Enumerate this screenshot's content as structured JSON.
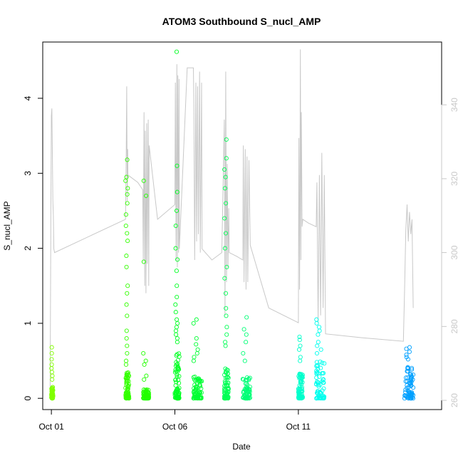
{
  "chart_data": {
    "type": "scatter",
    "title": "ATOM3 Southbound S_nucl_AMP",
    "xlabel": "Date",
    "ylabel": "S_nucl_AMP",
    "x_ticks": [
      "Oct 01",
      "Oct 06",
      "Oct 11"
    ],
    "x_tick_days": [
      1,
      6,
      11
    ],
    "xlim_days": [
      0.65,
      16.8
    ],
    "ylim": [
      -0.15,
      4.75
    ],
    "y_ticks": [
      0,
      1,
      2,
      3,
      4
    ],
    "y2_ticks": [
      260,
      280,
      300,
      320,
      340
    ],
    "y2lim": [
      257.5,
      357
    ],
    "grid": false,
    "legend": "none",
    "point_colors": [
      "#80ff00",
      "#00ff40",
      "#00ffff",
      "#0099ff"
    ],
    "secondary_line_color": "#c8c8c8",
    "clusters": [
      {
        "x": [
          1.0,
          1.07
        ],
        "y_base_max": 0.15,
        "y_max": 0.68,
        "color": "#80ff00",
        "highs": [
          0.68,
          0.6,
          0.52,
          0.45,
          0.4,
          0.35,
          0.3,
          0.25
        ]
      },
      {
        "x": [
          4.0,
          4.15
        ],
        "y_base_max": 0.35,
        "y_max": 3.18,
        "color": "#33ff00",
        "highs": [
          3.18,
          2.95,
          2.9,
          2.8,
          2.72,
          2.6,
          2.45,
          2.3,
          2.2,
          2.1,
          1.9,
          1.75,
          1.5,
          1.4,
          1.25,
          1.1,
          0.9,
          0.8,
          0.7,
          0.6,
          0.5,
          0.45
        ]
      },
      {
        "x": [
          4.72,
          4.95
        ],
        "y_base_max": 0.12,
        "y_max": 2.9,
        "color": "#22ff00",
        "highs": [
          2.9,
          2.7,
          1.82,
          0.6,
          0.5,
          0.45,
          0.3,
          0.25
        ]
      },
      {
        "x": [
          6.0,
          6.18
        ],
        "y_base_max": 0.6,
        "y_max": 4.62,
        "color": "#00ff22",
        "highs": [
          4.62,
          3.1,
          2.75,
          2.5,
          2.3,
          2.0,
          1.85,
          1.7,
          1.5,
          1.35,
          1.25,
          1.15,
          1.05,
          1.0,
          0.95,
          0.9,
          0.85,
          0.8,
          0.75
        ]
      },
      {
        "x": [
          6.75,
          7.1
        ],
        "y_base_max": 0.3,
        "y_max": 1.05,
        "color": "#00ff33",
        "highs": [
          1.05,
          1.0,
          0.8,
          0.72,
          0.65,
          0.6,
          0.55,
          0.5
        ]
      },
      {
        "x": [
          8.0,
          8.18
        ],
        "y_base_max": 0.4,
        "y_max": 3.45,
        "color": "#00ff55",
        "highs": [
          3.45,
          3.2,
          3.05,
          2.95,
          2.8,
          2.6,
          2.4,
          2.2,
          2.0,
          1.75,
          1.6,
          1.4,
          1.2,
          1.1,
          0.95,
          0.85,
          0.75,
          0.7
        ]
      },
      {
        "x": [
          8.75,
          9.05
        ],
        "y_base_max": 0.3,
        "y_max": 1.08,
        "color": "#00ff77",
        "highs": [
          1.08,
          0.92,
          0.85,
          0.75,
          0.6,
          0.5
        ]
      },
      {
        "x": [
          11.0,
          11.18
        ],
        "y_base_max": 0.35,
        "y_max": 0.82,
        "color": "#00ffcc",
        "highs": [
          0.82,
          0.78,
          0.7,
          0.65,
          0.55,
          0.5
        ]
      },
      {
        "x": [
          11.72,
          12.05
        ],
        "y_base_max": 0.5,
        "y_max": 1.05,
        "color": "#00ffee",
        "highs": [
          1.05,
          1.0,
          0.95,
          0.9,
          0.85,
          0.75,
          0.7,
          0.65,
          0.6
        ]
      },
      {
        "x": [
          15.3,
          15.65
        ],
        "y_base_max": 0.5,
        "y_max": 0.68,
        "color": "#00a0ff",
        "highs": [
          0.68,
          0.66,
          0.62,
          0.58,
          0.55,
          0.52
        ]
      }
    ],
    "secondary_series": {
      "axis": "right",
      "points": [
        [
          0.95,
          263
        ],
        [
          0.98,
          310
        ],
        [
          1.0,
          337
        ],
        [
          1.02,
          339
        ],
        [
          1.04,
          327
        ],
        [
          1.06,
          314
        ],
        [
          1.08,
          310
        ],
        [
          1.1,
          301
        ],
        [
          1.13,
          300
        ],
        [
          4.0,
          309
        ],
        [
          4.03,
          327
        ],
        [
          4.05,
          345
        ],
        [
          4.07,
          314
        ],
        [
          4.09,
          328
        ],
        [
          4.1,
          321
        ],
        [
          4.5,
          319
        ],
        [
          4.7,
          317
        ],
        [
          4.72,
          298
        ],
        [
          4.75,
          338
        ],
        [
          4.78,
          291
        ],
        [
          4.8,
          333
        ],
        [
          4.83,
          289
        ],
        [
          4.86,
          335
        ],
        [
          4.88,
          297
        ],
        [
          4.92,
          336
        ],
        [
          4.94,
          291
        ],
        [
          4.96,
          329
        ],
        [
          5.3,
          309
        ],
        [
          6.0,
          313
        ],
        [
          6.02,
          346
        ],
        [
          6.05,
          298
        ],
        [
          6.08,
          351
        ],
        [
          6.1,
          296
        ],
        [
          6.12,
          348
        ],
        [
          6.15,
          300
        ],
        [
          6.17,
          347
        ],
        [
          6.18,
          301
        ],
        [
          6.5,
          350
        ],
        [
          6.75,
          350
        ],
        [
          6.77,
          339
        ],
        [
          6.8,
          298
        ],
        [
          6.85,
          346
        ],
        [
          6.88,
          303
        ],
        [
          6.92,
          345
        ],
        [
          6.95,
          305
        ],
        [
          7.0,
          349
        ],
        [
          7.03,
          300
        ],
        [
          7.08,
          346
        ],
        [
          7.1,
          301
        ],
        [
          7.5,
          298
        ],
        [
          7.9,
          300
        ],
        [
          8.0,
          336
        ],
        [
          8.03,
          283
        ],
        [
          8.06,
          349
        ],
        [
          8.09,
          292
        ],
        [
          8.12,
          324
        ],
        [
          8.15,
          296
        ],
        [
          8.18,
          312
        ],
        [
          8.2,
          300
        ],
        [
          8.5,
          299
        ],
        [
          8.75,
          298
        ],
        [
          8.77,
          329
        ],
        [
          8.8,
          292
        ],
        [
          8.85,
          328
        ],
        [
          8.88,
          290
        ],
        [
          8.92,
          326
        ],
        [
          8.95,
          292
        ],
        [
          9.0,
          325
        ],
        [
          9.05,
          302
        ],
        [
          9.8,
          285
        ],
        [
          11.0,
          281
        ],
        [
          11.02,
          331
        ],
        [
          11.05,
          290
        ],
        [
          11.08,
          355
        ],
        [
          11.1,
          298
        ],
        [
          11.12,
          338
        ],
        [
          11.15,
          307
        ],
        [
          11.18,
          309
        ],
        [
          11.4,
          308
        ],
        [
          11.72,
          307
        ],
        [
          11.75,
          319
        ],
        [
          11.8,
          281
        ],
        [
          11.85,
          321
        ],
        [
          11.9,
          283
        ],
        [
          11.95,
          327
        ],
        [
          12.0,
          285
        ],
        [
          12.05,
          321
        ],
        [
          12.1,
          278
        ],
        [
          13.5,
          277
        ],
        [
          15.25,
          276
        ],
        [
          15.3,
          290
        ],
        [
          15.35,
          306
        ],
        [
          15.4,
          313
        ],
        [
          15.45,
          303
        ],
        [
          15.5,
          311
        ],
        [
          15.55,
          305
        ],
        [
          15.6,
          309
        ],
        [
          15.65,
          285
        ]
      ]
    }
  }
}
